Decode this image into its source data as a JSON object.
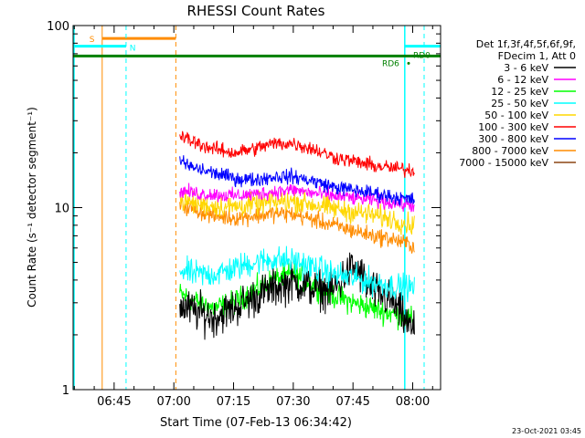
{
  "chart_data": {
    "type": "line",
    "title": "RHESSI Count Rates",
    "xlabel": "Start Time (07-Feb-13 06:34:42)",
    "ylabel": "Count Rate (s⁻¹ detector segment⁻¹)",
    "y_scale": "log",
    "ylim": [
      1,
      100
    ],
    "y_ticks": [
      {
        "value": 1,
        "label": "1"
      },
      {
        "value": 10,
        "label": "10"
      },
      {
        "value": 100,
        "label": "100"
      }
    ],
    "xlim": [
      "06:34:42",
      "08:07:00"
    ],
    "x_ticks": [
      {
        "value": "06:45",
        "label": "06:45"
      },
      {
        "value": "07:00",
        "label": "07:00"
      },
      {
        "value": "07:15",
        "label": "07:15"
      },
      {
        "value": "07:30",
        "label": "07:30"
      },
      {
        "value": "07:45",
        "label": "07:45"
      },
      {
        "value": "08:00",
        "label": "08:00"
      }
    ],
    "legend_title": [
      "Det 1f,3f,4f,5f,6f,9f,",
      "FDecim 1, Att 0"
    ],
    "legend_position": "right",
    "date_stamp": "23-Oct-2021 03:45",
    "data_range": [
      "07:01:30",
      "08:00:30"
    ],
    "series": [
      {
        "name": "3 - 6 keV",
        "color": "#000000",
        "x": [
          "07:01",
          "07:05",
          "07:10",
          "07:15",
          "07:20",
          "07:25",
          "07:30",
          "07:35",
          "07:40",
          "07:45",
          "07:50",
          "07:55",
          "08:00"
        ],
        "values": [
          2.9,
          2.7,
          2.5,
          2.8,
          3.2,
          3.6,
          3.9,
          3.6,
          3.5,
          4.5,
          3.5,
          3.0,
          2.1
        ]
      },
      {
        "name": "6 - 12 keV",
        "color": "#ff00ff",
        "x": [
          "07:01",
          "07:05",
          "07:10",
          "07:15",
          "07:20",
          "07:25",
          "07:30",
          "07:35",
          "07:40",
          "07:45",
          "07:50",
          "07:55",
          "08:00"
        ],
        "values": [
          12.5,
          12.0,
          11.8,
          11.6,
          11.8,
          12.2,
          12.5,
          12.0,
          11.6,
          11.3,
          11.0,
          10.6,
          10.3
        ]
      },
      {
        "name": "12 - 25 keV",
        "color": "#00ff00",
        "x": [
          "07:01",
          "07:05",
          "07:10",
          "07:15",
          "07:20",
          "07:25",
          "07:30",
          "07:35",
          "07:40",
          "07:45",
          "07:50",
          "07:55",
          "08:00"
        ],
        "values": [
          3.4,
          3.1,
          2.8,
          3.0,
          3.5,
          4.0,
          4.3,
          3.8,
          3.3,
          3.0,
          2.8,
          2.6,
          2.4
        ]
      },
      {
        "name": "25 - 50 keV",
        "color": "#00ffff",
        "x": [
          "07:01",
          "07:05",
          "07:10",
          "07:15",
          "07:20",
          "07:25",
          "07:30",
          "07:35",
          "07:40",
          "07:45",
          "07:50",
          "07:55",
          "08:00"
        ],
        "values": [
          4.6,
          4.3,
          4.3,
          4.6,
          5.0,
          5.2,
          5.1,
          4.7,
          4.3,
          4.1,
          3.9,
          3.7,
          3.6
        ]
      },
      {
        "name": "50 - 100 keV",
        "color": "#ffd700",
        "x": [
          "07:01",
          "07:05",
          "07:10",
          "07:15",
          "07:20",
          "07:25",
          "07:30",
          "07:35",
          "07:40",
          "07:45",
          "07:50",
          "07:55",
          "08:00"
        ],
        "values": [
          11.0,
          10.6,
          10.2,
          10.1,
          10.4,
          10.7,
          10.9,
          10.4,
          9.9,
          9.5,
          9.1,
          8.6,
          8.0
        ]
      },
      {
        "name": "100 - 300 keV",
        "color": "#ff0000",
        "x": [
          "07:01",
          "07:05",
          "07:10",
          "07:15",
          "07:20",
          "07:25",
          "07:30",
          "07:35",
          "07:40",
          "07:45",
          "07:50",
          "07:55",
          "08:00"
        ],
        "values": [
          25.0,
          23.0,
          21.0,
          20.0,
          21.0,
          22.5,
          22.5,
          21.0,
          19.0,
          18.0,
          17.0,
          16.5,
          16.0
        ]
      },
      {
        "name": "300 - 800 keV",
        "color": "#0000ff",
        "x": [
          "07:01",
          "07:05",
          "07:10",
          "07:15",
          "07:20",
          "07:25",
          "07:30",
          "07:35",
          "07:40",
          "07:45",
          "07:50",
          "07:55",
          "08:00"
        ],
        "values": [
          18.0,
          16.5,
          15.5,
          14.5,
          14.2,
          14.8,
          14.8,
          14.0,
          13.0,
          12.5,
          12.0,
          11.5,
          11.0
        ]
      },
      {
        "name": "800 - 7000 keV",
        "color": "#ff8c00",
        "x": [
          "07:01",
          "07:05",
          "07:10",
          "07:15",
          "07:20",
          "07:25",
          "07:30",
          "07:35",
          "07:40",
          "07:45",
          "07:50",
          "07:55",
          "08:00"
        ],
        "values": [
          10.5,
          9.8,
          9.0,
          8.8,
          9.0,
          9.3,
          9.2,
          8.6,
          8.0,
          7.5,
          7.0,
          6.7,
          6.2
        ]
      },
      {
        "name": "7000 - 15000 keV",
        "color": "#8b4513",
        "x": [],
        "values": []
      }
    ],
    "annotations": {
      "saa": {
        "label": "S",
        "color": "#ff8c00",
        "level": 85,
        "start": "06:40",
        "end": "07:01",
        "marker_start": "06:42",
        "marker_end": "07:00:30"
      },
      "night": {
        "label": "N",
        "color": "#00ffff",
        "level": 77,
        "start": "06:34:42",
        "end": "06:48",
        "marker_end": "06:48",
        "day_start": "07:58",
        "day_end": "08:07"
      },
      "rd6": {
        "label": "RD6",
        "color": "#008000",
        "level": 68
      },
      "rd0": {
        "label": "RD0",
        "color": "#008000"
      }
    }
  }
}
